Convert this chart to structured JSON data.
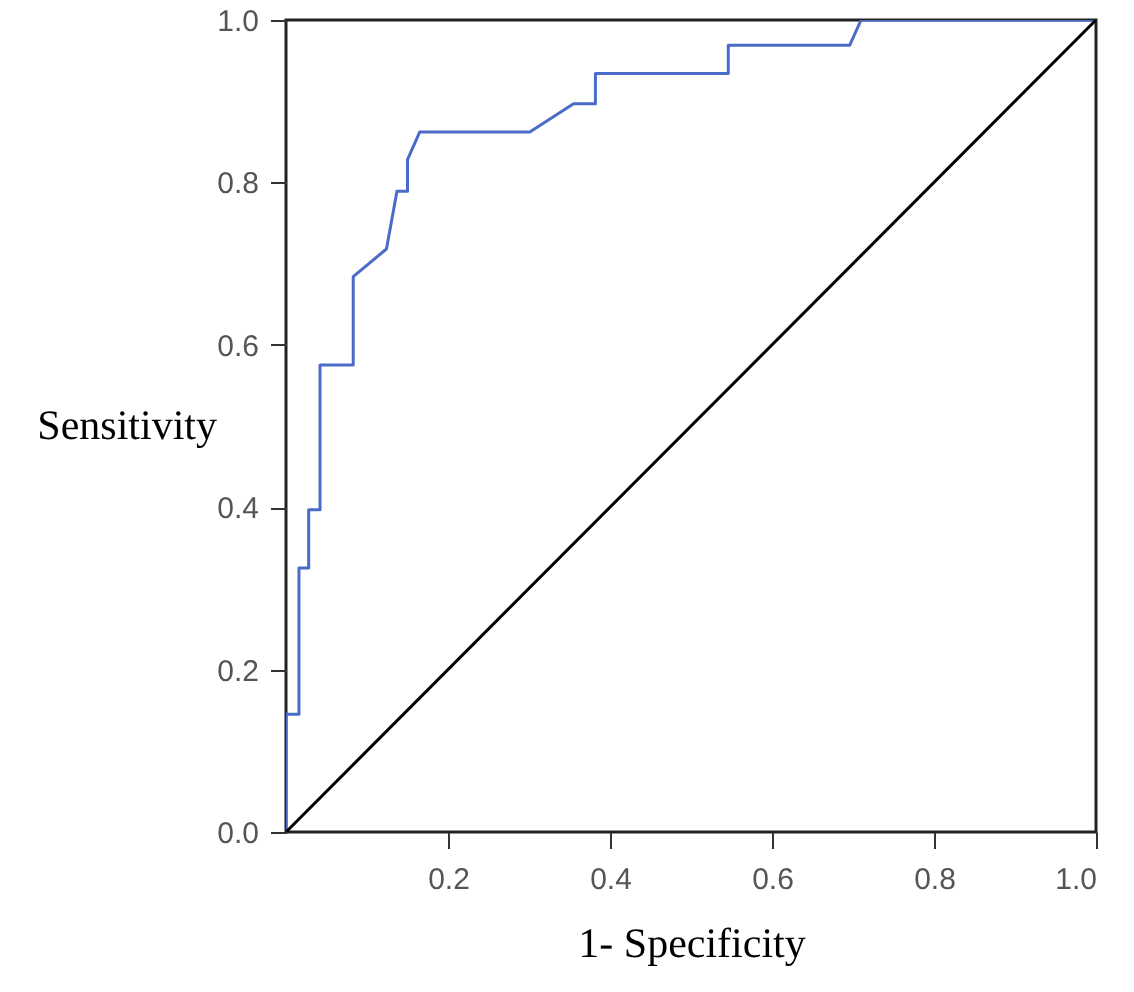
{
  "chart_data": {
    "type": "line",
    "xlabel": "1- Specificity",
    "ylabel": "Sensitivity",
    "xlim": [
      0,
      1
    ],
    "ylim": [
      0,
      1
    ],
    "xticks": [
      0.2,
      0.4,
      0.6,
      0.8,
      {
        "value": 1,
        "label": "1.0"
      }
    ],
    "yticks": [
      {
        "value": 0,
        "label": "0.0"
      },
      {
        "value": 0.2,
        "label": "0.2"
      },
      {
        "value": 0.4,
        "label": "0.4"
      },
      {
        "value": 0.6,
        "label": "0.6"
      },
      {
        "value": 0.8,
        "label": "0.8"
      },
      {
        "value": 1,
        "label": "1.0"
      }
    ],
    "series": [
      {
        "color": "#4a6cc8",
        "x": [
          0,
          0,
          0.016,
          0.016,
          0.028,
          0.028,
          0.042,
          0.042,
          0.083,
          0.083,
          0.124,
          0.137,
          0.15,
          0.15,
          0.165,
          0.301,
          0.355,
          0.382,
          0.382,
          0.546,
          0.546,
          0.696,
          0.71,
          1
        ],
        "values": [
          0,
          0.145,
          0.145,
          0.325,
          0.325,
          0.397,
          0.397,
          0.575,
          0.575,
          0.684,
          0.718,
          0.789,
          0.789,
          0.828,
          0.862,
          0.862,
          0.897,
          0.897,
          0.934,
          0.934,
          0.969,
          0.969,
          1,
          1
        ]
      },
      {
        "color": "#000000",
        "x": [
          0,
          1
        ],
        "values": [
          0,
          1
        ]
      }
    ]
  }
}
